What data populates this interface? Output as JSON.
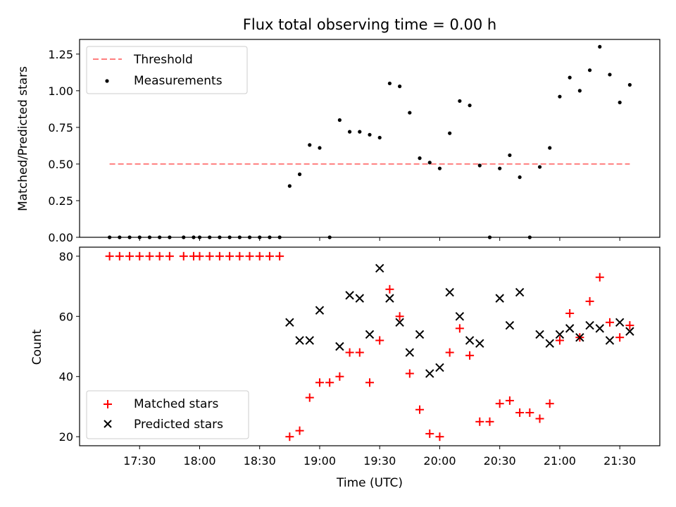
{
  "chart_data": [
    {
      "type": "scatter",
      "title": "Flux total observing time = 0.00 h",
      "ylabel": "Matched/Predicted stars",
      "ylim": [
        0,
        1.35
      ],
      "yticks": [
        0,
        0.25,
        0.5,
        0.75,
        1.0,
        1.25
      ],
      "ytick_labels": [
        "0.00",
        "0.25",
        "0.50",
        "0.75",
        "1.00",
        "1.25"
      ],
      "legend_position": "upper-left",
      "threshold": {
        "name": "Threshold",
        "value": 0.5,
        "x_start": "17:15",
        "x_end": "21:35",
        "color": "#ff7f7f",
        "style": "dashed"
      },
      "series": [
        {
          "name": "Measurements",
          "color": "#000000",
          "marker": "dot",
          "x": [
            "17:15",
            "17:20",
            "17:25",
            "17:30",
            "17:35",
            "17:40",
            "17:45",
            "17:52",
            "17:57",
            "18:00",
            "18:05",
            "18:10",
            "18:15",
            "18:20",
            "18:25",
            "18:30",
            "18:35",
            "18:40",
            "18:45",
            "18:50",
            "18:55",
            "19:00",
            "19:05",
            "19:10",
            "19:15",
            "19:20",
            "19:25",
            "19:30",
            "19:35",
            "19:40",
            "19:45",
            "19:50",
            "19:55",
            "20:00",
            "20:05",
            "20:10",
            "20:15",
            "20:20",
            "20:25",
            "20:30",
            "20:35",
            "20:40",
            "20:45",
            "20:50",
            "20:55",
            "21:00",
            "21:05",
            "21:10",
            "21:15",
            "21:20",
            "21:25",
            "21:30",
            "21:35"
          ],
          "y": [
            0,
            0,
            0,
            0,
            0,
            0,
            0,
            0,
            0,
            0,
            0,
            0,
            0,
            0,
            0,
            0,
            0,
            0,
            0.35,
            0.43,
            0.63,
            0.61,
            0,
            0.8,
            0.72,
            0.72,
            0.7,
            0.68,
            1.05,
            1.03,
            0.85,
            0.54,
            0.51,
            0.47,
            0.71,
            0.93,
            0.9,
            0.49,
            0,
            0.47,
            0.56,
            0.41,
            0,
            0.48,
            0.61,
            0.96,
            1.09,
            1.0,
            1.14,
            1.3,
            1.11,
            0.92,
            1.04
          ]
        }
      ]
    },
    {
      "type": "scatter",
      "xlabel": "Time (UTC)",
      "ylabel": "Count",
      "ylim": [
        17,
        83
      ],
      "yticks": [
        20,
        40,
        60,
        80
      ],
      "xticks": [
        "17:30",
        "18:00",
        "18:30",
        "19:00",
        "19:30",
        "20:00",
        "20:30",
        "21:00",
        "21:30"
      ],
      "xlim": [
        "17:00",
        "21:50"
      ],
      "legend_position": "lower-left",
      "series": [
        {
          "name": "Matched stars",
          "color": "#ff0000",
          "marker": "plus",
          "x": [
            "17:15",
            "17:20",
            "17:25",
            "17:30",
            "17:35",
            "17:40",
            "17:45",
            "17:52",
            "17:57",
            "18:00",
            "18:05",
            "18:10",
            "18:15",
            "18:20",
            "18:25",
            "18:30",
            "18:35",
            "18:40",
            "18:45",
            "18:50",
            "18:55",
            "19:00",
            "19:05",
            "19:10",
            "19:15",
            "19:20",
            "19:25",
            "19:30",
            "19:35",
            "19:40",
            "19:45",
            "19:50",
            "19:55",
            "20:00",
            "20:05",
            "20:10",
            "20:15",
            "20:20",
            "20:25",
            "20:30",
            "20:35",
            "20:40",
            "20:45",
            "20:50",
            "20:55",
            "21:00",
            "21:05",
            "21:10",
            "21:15",
            "21:20",
            "21:25",
            "21:30",
            "21:35"
          ],
          "y": [
            80,
            80,
            80,
            80,
            80,
            80,
            80,
            80,
            80,
            80,
            80,
            80,
            80,
            80,
            80,
            80,
            80,
            80,
            20,
            22,
            33,
            38,
            38,
            40,
            48,
            48,
            38,
            52,
            69,
            60,
            41,
            29,
            21,
            20,
            48,
            56,
            47,
            25,
            25,
            31,
            32,
            28,
            28,
            26,
            31,
            52,
            61,
            53,
            65,
            73,
            58,
            53,
            57
          ]
        },
        {
          "name": "Predicted stars",
          "color": "#000000",
          "marker": "x",
          "x": [
            "18:45",
            "18:50",
            "18:55",
            "19:00",
            "19:10",
            "19:15",
            "19:20",
            "19:25",
            "19:30",
            "19:35",
            "19:40",
            "19:45",
            "19:50",
            "19:55",
            "20:00",
            "20:05",
            "20:10",
            "20:15",
            "20:20",
            "20:30",
            "20:35",
            "20:40",
            "20:50",
            "20:55",
            "21:00",
            "21:05",
            "21:10",
            "21:15",
            "21:20",
            "21:25",
            "21:30",
            "21:35"
          ],
          "y": [
            58,
            52,
            52,
            62,
            50,
            67,
            66,
            54,
            76,
            66,
            58,
            48,
            54,
            41,
            43,
            68,
            60,
            52,
            51,
            66,
            57,
            68,
            54,
            51,
            54,
            56,
            53,
            57,
            56,
            52,
            58,
            55
          ]
        }
      ]
    }
  ]
}
